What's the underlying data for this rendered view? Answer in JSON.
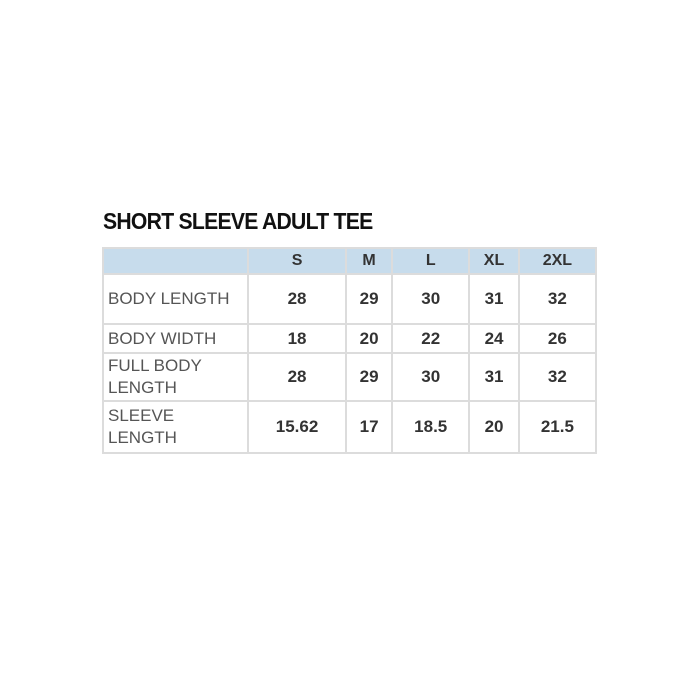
{
  "title": "SHORT SLEEVE ADULT TEE",
  "columns": [
    "",
    "S",
    "M",
    "L",
    "XL",
    "2XL"
  ],
  "rows": [
    {
      "label": "BODY LENGTH",
      "values": [
        "28",
        "29",
        "30",
        "31",
        "32"
      ]
    },
    {
      "label": "BODY WIDTH",
      "values": [
        "18",
        "20",
        "22",
        "24",
        "26"
      ]
    },
    {
      "label": "FULL BODY LENGTH",
      "values": [
        "28",
        "29",
        "30",
        "31",
        "32"
      ]
    },
    {
      "label": "SLEEVE LENGTH",
      "values": [
        "15.62",
        "17",
        "18.5",
        "20",
        "21.5"
      ]
    }
  ],
  "colors": {
    "header_bg": "#c7dcec",
    "border": "#dcdcdc"
  }
}
